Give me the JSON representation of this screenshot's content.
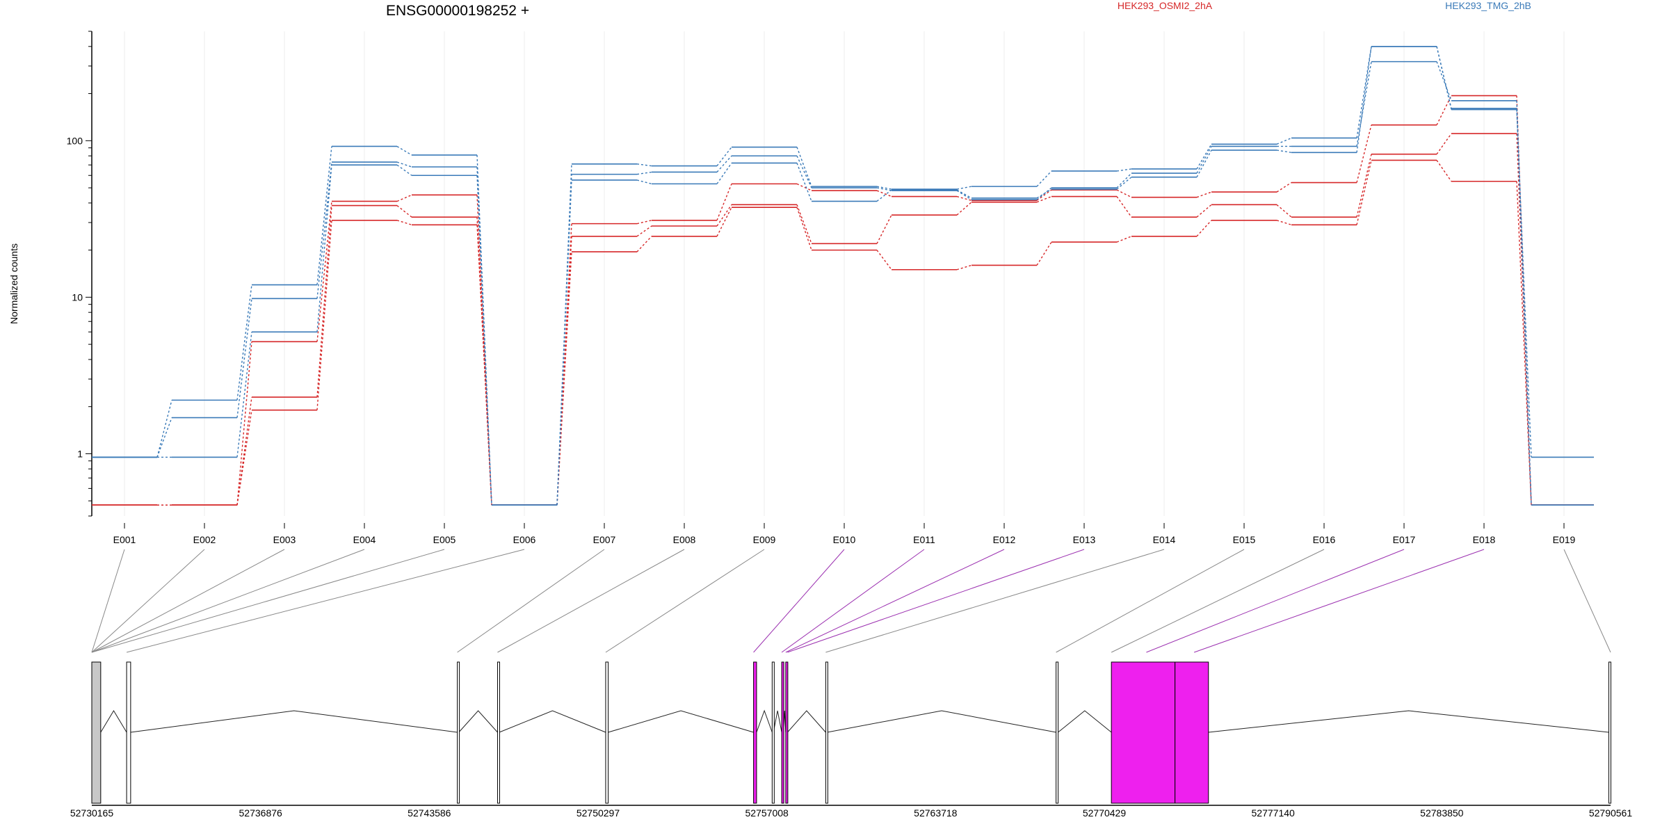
{
  "chart_data": {
    "type": "line",
    "title": "ENSG00000198252 +",
    "ylabel": "Normalized counts",
    "yscale": "log",
    "ylim": [
      0.4,
      500
    ],
    "y_ticks": [
      1,
      10,
      100
    ],
    "y_tick_labels": [
      "1",
      "10",
      "100"
    ],
    "grid": false,
    "legend_position": "top",
    "categories": [
      "E001",
      "E002",
      "E003",
      "E004",
      "E005",
      "E006",
      "E007",
      "E008",
      "E009",
      "E010",
      "E011",
      "E012",
      "E013",
      "E014",
      "E015",
      "E016",
      "E017",
      "E018",
      "E019"
    ],
    "legend": [
      {
        "label": "HEK293_OSMI2_2hA",
        "color": "#d62728"
      },
      {
        "label": "HEK293_TMG_2hB",
        "color": "#3a7ab8"
      }
    ],
    "series": [
      {
        "group": 0,
        "values": [
          0.47,
          0.47,
          1.9,
          31,
          29,
          0.47,
          19.5,
          24.5,
          37.5,
          20,
          15,
          16,
          22.5,
          24.5,
          31,
          29,
          75,
          55,
          0.47
        ]
      },
      {
        "group": 0,
        "values": [
          0.47,
          0.47,
          2.3,
          38.5,
          32.5,
          0.47,
          24.5,
          28.5,
          39,
          22,
          33.5,
          40.5,
          44,
          32.5,
          39,
          32.5,
          82,
          111,
          0.47
        ]
      },
      {
        "group": 0,
        "values": [
          0.47,
          0.47,
          5.2,
          41,
          45,
          0.47,
          29.5,
          31,
          53,
          48,
          44,
          41.5,
          48.5,
          43.5,
          47,
          54,
          126,
          194,
          0.47
        ]
      },
      {
        "group": 1,
        "values": [
          0.95,
          0.95,
          6,
          70,
          60,
          0.47,
          56,
          53,
          72,
          41,
          48.5,
          43,
          49,
          58.5,
          87,
          84,
          400,
          161,
          0.47
        ]
      },
      {
        "group": 1,
        "values": [
          0.95,
          1.7,
          9.8,
          73,
          68,
          0.47,
          61,
          63,
          80,
          50,
          48,
          42,
          50,
          62,
          92,
          92,
          320,
          180,
          0.47
        ]
      },
      {
        "group": 1,
        "values": [
          0.95,
          2.2,
          12,
          92,
          81,
          0.47,
          71,
          69,
          91,
          51,
          49,
          51,
          64,
          66,
          95,
          104,
          400,
          158,
          0.95
        ]
      }
    ],
    "gene_model": {
      "coord_ticks": [
        "52730165",
        "52736876",
        "52743586",
        "52750297",
        "52757008",
        "52763718",
        "52770429",
        "52777140",
        "52783850",
        "52790561"
      ],
      "coord_min": 52730165,
      "coord_max": 52790561,
      "exons": [
        {
          "start": 52730165,
          "end": 52730520,
          "fill": "#c8c8c8"
        },
        {
          "start": 52731550,
          "end": 52731710,
          "fill": "#ffffff"
        },
        {
          "start": 52744700,
          "end": 52744760,
          "fill": "#ffffff"
        },
        {
          "start": 52746300,
          "end": 52746370,
          "fill": "#ffffff"
        },
        {
          "start": 52750600,
          "end": 52750700,
          "fill": "#ffffff"
        },
        {
          "start": 52756480,
          "end": 52756600,
          "fill": "#ee20ee"
        },
        {
          "start": 52757220,
          "end": 52757270,
          "fill": "#ffffff"
        },
        {
          "start": 52757600,
          "end": 52757670,
          "fill": "#ee20ee"
        },
        {
          "start": 52757760,
          "end": 52757830,
          "fill": "#ee20ee"
        },
        {
          "start": 52759350,
          "end": 52759410,
          "fill": "#ffffff"
        },
        {
          "start": 52768510,
          "end": 52768590,
          "fill": "#ffffff"
        },
        {
          "start": 52770710,
          "end": 52773240,
          "fill": "#ee20ee"
        },
        {
          "start": 52773240,
          "end": 52774570,
          "fill": "#ee20ee"
        },
        {
          "start": 52790490,
          "end": 52790561,
          "fill": "#ffffff"
        }
      ],
      "bin_links": [
        {
          "bin": "E001",
          "coord": 52730165,
          "color": "#888888"
        },
        {
          "bin": "E002",
          "coord": 52730165,
          "color": "#888888"
        },
        {
          "bin": "E003",
          "coord": 52730165,
          "color": "#888888"
        },
        {
          "bin": "E004",
          "coord": 52730165,
          "color": "#888888"
        },
        {
          "bin": "E005",
          "coord": 52730165,
          "color": "#888888"
        },
        {
          "bin": "E006",
          "coord": 52731550,
          "color": "#888888"
        },
        {
          "bin": "E007",
          "coord": 52744700,
          "color": "#888888"
        },
        {
          "bin": "E008",
          "coord": 52746300,
          "color": "#888888"
        },
        {
          "bin": "E009",
          "coord": 52750600,
          "color": "#888888"
        },
        {
          "bin": "E010",
          "coord": 52756480,
          "color": "#9b30b0"
        },
        {
          "bin": "E011",
          "coord": 52757600,
          "color": "#9b30b0"
        },
        {
          "bin": "E012",
          "coord": 52757760,
          "color": "#9b30b0"
        },
        {
          "bin": "E013",
          "coord": 52757830,
          "color": "#9b30b0"
        },
        {
          "bin": "E014",
          "coord": 52759350,
          "color": "#888888"
        },
        {
          "bin": "E015",
          "coord": 52768510,
          "color": "#888888"
        },
        {
          "bin": "E016",
          "coord": 52770710,
          "color": "#888888"
        },
        {
          "bin": "E017",
          "coord": 52772100,
          "color": "#9b30b0"
        },
        {
          "bin": "E018",
          "coord": 52774000,
          "color": "#9b30b0"
        },
        {
          "bin": "E019",
          "coord": 52790561,
          "color": "#888888"
        }
      ]
    }
  }
}
